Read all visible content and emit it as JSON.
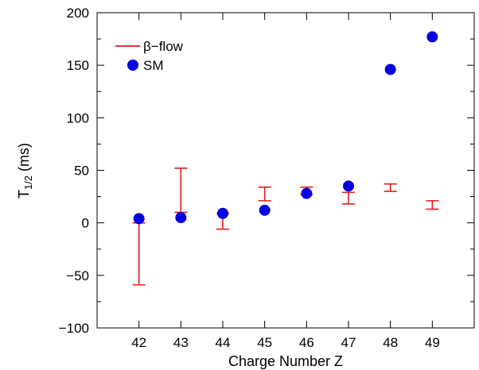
{
  "chart_data": {
    "type": "scatter",
    "xlabel": "Charge Number Z",
    "ylabel_main": "T",
    "ylabel_sub": "1/2",
    "ylabel_rest": " (ms)",
    "xlim": [
      41,
      50
    ],
    "ylim": [
      -100,
      200
    ],
    "xticks": [
      42,
      43,
      44,
      45,
      46,
      47,
      48,
      49
    ],
    "yticks": [
      -100,
      -50,
      0,
      50,
      100,
      150,
      200
    ],
    "ytick_labels": [
      "−100",
      "−50",
      "0",
      "50",
      "100",
      "150",
      "200"
    ],
    "grid": false,
    "legend_position": "top-left",
    "colors": {
      "beta_flow": "#e31a1c",
      "sm": "#0000e0"
    },
    "series": [
      {
        "name": "β−flow",
        "kind": "errorbar",
        "x": [
          42,
          43,
          44,
          45,
          46,
          47,
          48,
          49
        ],
        "low": [
          -59,
          10,
          -6,
          21,
          27,
          18,
          30,
          13
        ],
        "high": [
          0,
          52,
          9,
          34,
          34,
          29,
          37,
          21
        ]
      },
      {
        "name": "SM",
        "kind": "points",
        "x": [
          42,
          43,
          44,
          45,
          46,
          47,
          48,
          49
        ],
        "y": [
          4,
          5,
          9,
          12,
          28,
          35,
          146,
          177
        ]
      }
    ]
  }
}
